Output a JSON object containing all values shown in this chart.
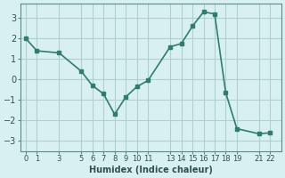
{
  "x": [
    0,
    1,
    3,
    5,
    6,
    7,
    8,
    9,
    10,
    11,
    13,
    14,
    15,
    16,
    17,
    18,
    19,
    21,
    22
  ],
  "y": [
    2.0,
    1.4,
    1.3,
    0.4,
    -0.3,
    -0.7,
    -1.7,
    -0.85,
    -0.35,
    -0.05,
    1.6,
    1.75,
    2.6,
    3.3,
    3.2,
    -0.65,
    -2.4,
    -2.65,
    -2.6
  ],
  "xlabel": "Humidex (Indice chaleur)",
  "line_color": "#2e7d6e",
  "bg_color": "#d8f0f0",
  "grid_color": "#b0d0d0",
  "ylim": [
    -3.5,
    3.7
  ],
  "xlim": [
    -0.5,
    23
  ],
  "yticks": [
    -3,
    -2,
    -1,
    0,
    1,
    2,
    3
  ],
  "xtick_positions": [
    0,
    1,
    3,
    5,
    6,
    7,
    8,
    9,
    10,
    11,
    13,
    14,
    15,
    16,
    17,
    18,
    19,
    21,
    22
  ],
  "xtick_labels": [
    "0",
    "1",
    "3",
    "5",
    "6",
    "7",
    "8",
    "9",
    "10",
    "11",
    "13",
    "14",
    "15",
    "16",
    "17",
    "18",
    "19",
    "21",
    "22"
  ],
  "marker_size": 3,
  "line_width": 1.2,
  "tick_color": "#2e5050",
  "spine_color": "#5a8a8a"
}
